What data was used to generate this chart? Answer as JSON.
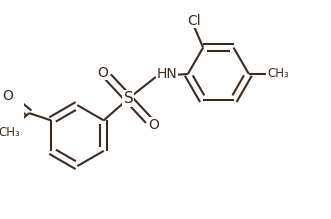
{
  "bg_color": "#ffffff",
  "line_color": "#3d2b1f",
  "text_color": "#3d2b1f",
  "line_width": 1.5,
  "dlo": 0.012,
  "figsize": [
    3.31,
    2.19
  ],
  "dpi": 100,
  "xlim": [
    0.0,
    1.0
  ],
  "ylim": [
    0.0,
    0.75
  ]
}
